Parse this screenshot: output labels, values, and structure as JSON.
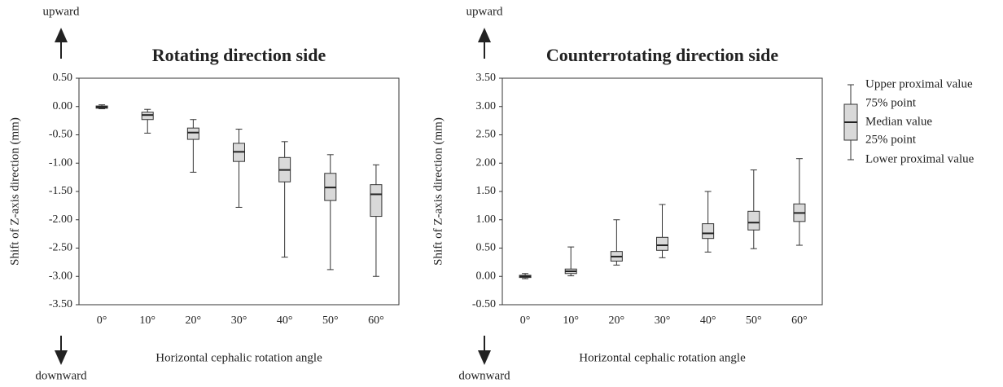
{
  "chart_data": [
    {
      "type": "box",
      "title": "Rotating direction side",
      "up_label": "upward",
      "down_label": "downward",
      "y_label": "Shift  of Z-axis direction (mm)",
      "x_label": "Horizontal cephalic rotation angle",
      "categories": [
        "0°",
        "10°",
        "20°",
        "30°",
        "40°",
        "50°",
        "60°"
      ],
      "color": "#d9d9d9",
      "whisker_high": [
        0.03,
        -0.05,
        -0.23,
        -0.4,
        -0.62,
        -0.85,
        -1.03
      ],
      "q3": [
        0.01,
        -0.1,
        -0.38,
        -0.65,
        -0.9,
        -1.18,
        -1.38
      ],
      "median": [
        -0.01,
        -0.15,
        -0.46,
        -0.8,
        -1.12,
        -1.43,
        -1.55
      ],
      "q1": [
        -0.03,
        -0.23,
        -0.58,
        -0.97,
        -1.33,
        -1.66,
        -1.94
      ],
      "whisker_low": [
        -0.04,
        -0.47,
        -1.16,
        -1.78,
        -2.66,
        -2.88,
        -3.0
      ],
      "ylim": [
        -3.5,
        0.5
      ],
      "yticks": [
        {
          "value": 0.5,
          "label": "0.50"
        },
        {
          "value": 0,
          "label": "0.00"
        },
        {
          "value": -0.5,
          "label": "-0.50"
        },
        {
          "value": -1,
          "label": "-1.00"
        },
        {
          "value": -1.5,
          "label": "-1.50"
        },
        {
          "value": -2,
          "label": "-2.00"
        },
        {
          "value": -2.5,
          "label": "-2.50"
        },
        {
          "value": -3,
          "label": "-3.00"
        },
        {
          "value": -3.5,
          "label": "-3.50"
        }
      ]
    },
    {
      "type": "box",
      "title": "Counterrotating direction side",
      "up_label": "upward",
      "down_label": "downward",
      "y_label": "Shift  of Z-axis direction (mm)",
      "x_label": "Horizontal cephalic rotation angle",
      "categories": [
        "0°",
        "10°",
        "20°",
        "30°",
        "40°",
        "50°",
        "60°"
      ],
      "color": "#d9d9d9",
      "whisker_high": [
        0.05,
        0.52,
        1.0,
        1.27,
        1.5,
        1.88,
        2.08
      ],
      "q3": [
        0.02,
        0.13,
        0.44,
        0.69,
        0.93,
        1.15,
        1.28
      ],
      "median": [
        0,
        0.09,
        0.35,
        0.55,
        0.76,
        0.95,
        1.12
      ],
      "q1": [
        -0.02,
        0.05,
        0.27,
        0.46,
        0.67,
        0.82,
        0.97
      ],
      "whisker_low": [
        -0.04,
        0.01,
        0.2,
        0.33,
        0.43,
        0.49,
        0.55
      ],
      "ylim": [
        -0.5,
        3.5
      ],
      "yticks": [
        {
          "value": 3.5,
          "label": "3.50"
        },
        {
          "value": 3,
          "label": "3.00"
        },
        {
          "value": 2.5,
          "label": "2.50"
        },
        {
          "value": 2,
          "label": "2.00"
        },
        {
          "value": 1.5,
          "label": "1.50"
        },
        {
          "value": 1,
          "label": "1.00"
        },
        {
          "value": 0.5,
          "label": "0.50"
        },
        {
          "value": 0,
          "label": "0.00"
        },
        {
          "value": -0.5,
          "label": "-0.50"
        }
      ],
      "legend": [
        "Upper proximal value",
        "75% point",
        "Median value",
        "25% point",
        "Lower proximal value"
      ]
    }
  ]
}
